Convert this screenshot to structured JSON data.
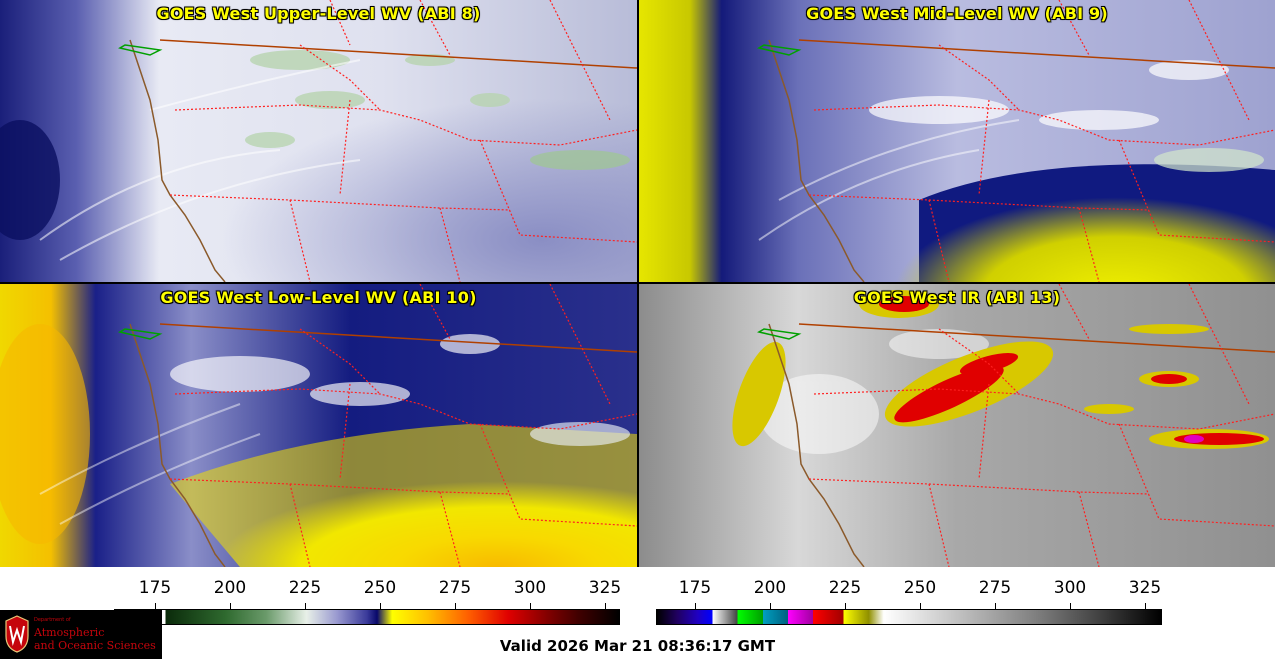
{
  "panels": [
    {
      "title": "GOES West Upper-Level WV (ABI 8)"
    },
    {
      "title": "GOES West Mid-Level WV (ABI 9)"
    },
    {
      "title": "GOES West Low-Level WV (ABI 10)"
    },
    {
      "title": "GOES West IR (ABI 13)"
    }
  ],
  "colorbar_left": {
    "ticks": [
      "175",
      "200",
      "225",
      "250",
      "275",
      "300",
      "325"
    ],
    "colors": [
      "#ffffff",
      "#1a4a1a",
      "#4a8a4a",
      "#e8f0e8",
      "#7a7ab8",
      "#10107a",
      "#ffff00",
      "#ff8000",
      "#e00000",
      "#600000",
      "#000000"
    ]
  },
  "colorbar_right": {
    "ticks": [
      "175",
      "200",
      "225",
      "250",
      "275",
      "300",
      "325"
    ],
    "colors": [
      "#000000",
      "#2000a0",
      "#ffffff",
      "#00c000",
      "#009090",
      "#c000c0",
      "#e00000",
      "#e0e000",
      "#ffffff",
      "#808080",
      "#000000"
    ]
  },
  "logo": {
    "dept": "Department of",
    "line1": "Atmospheric",
    "line2": "and Oceanic Sciences"
  },
  "valid_time": "Valid 2026 Mar 21 08:36:17 GMT"
}
